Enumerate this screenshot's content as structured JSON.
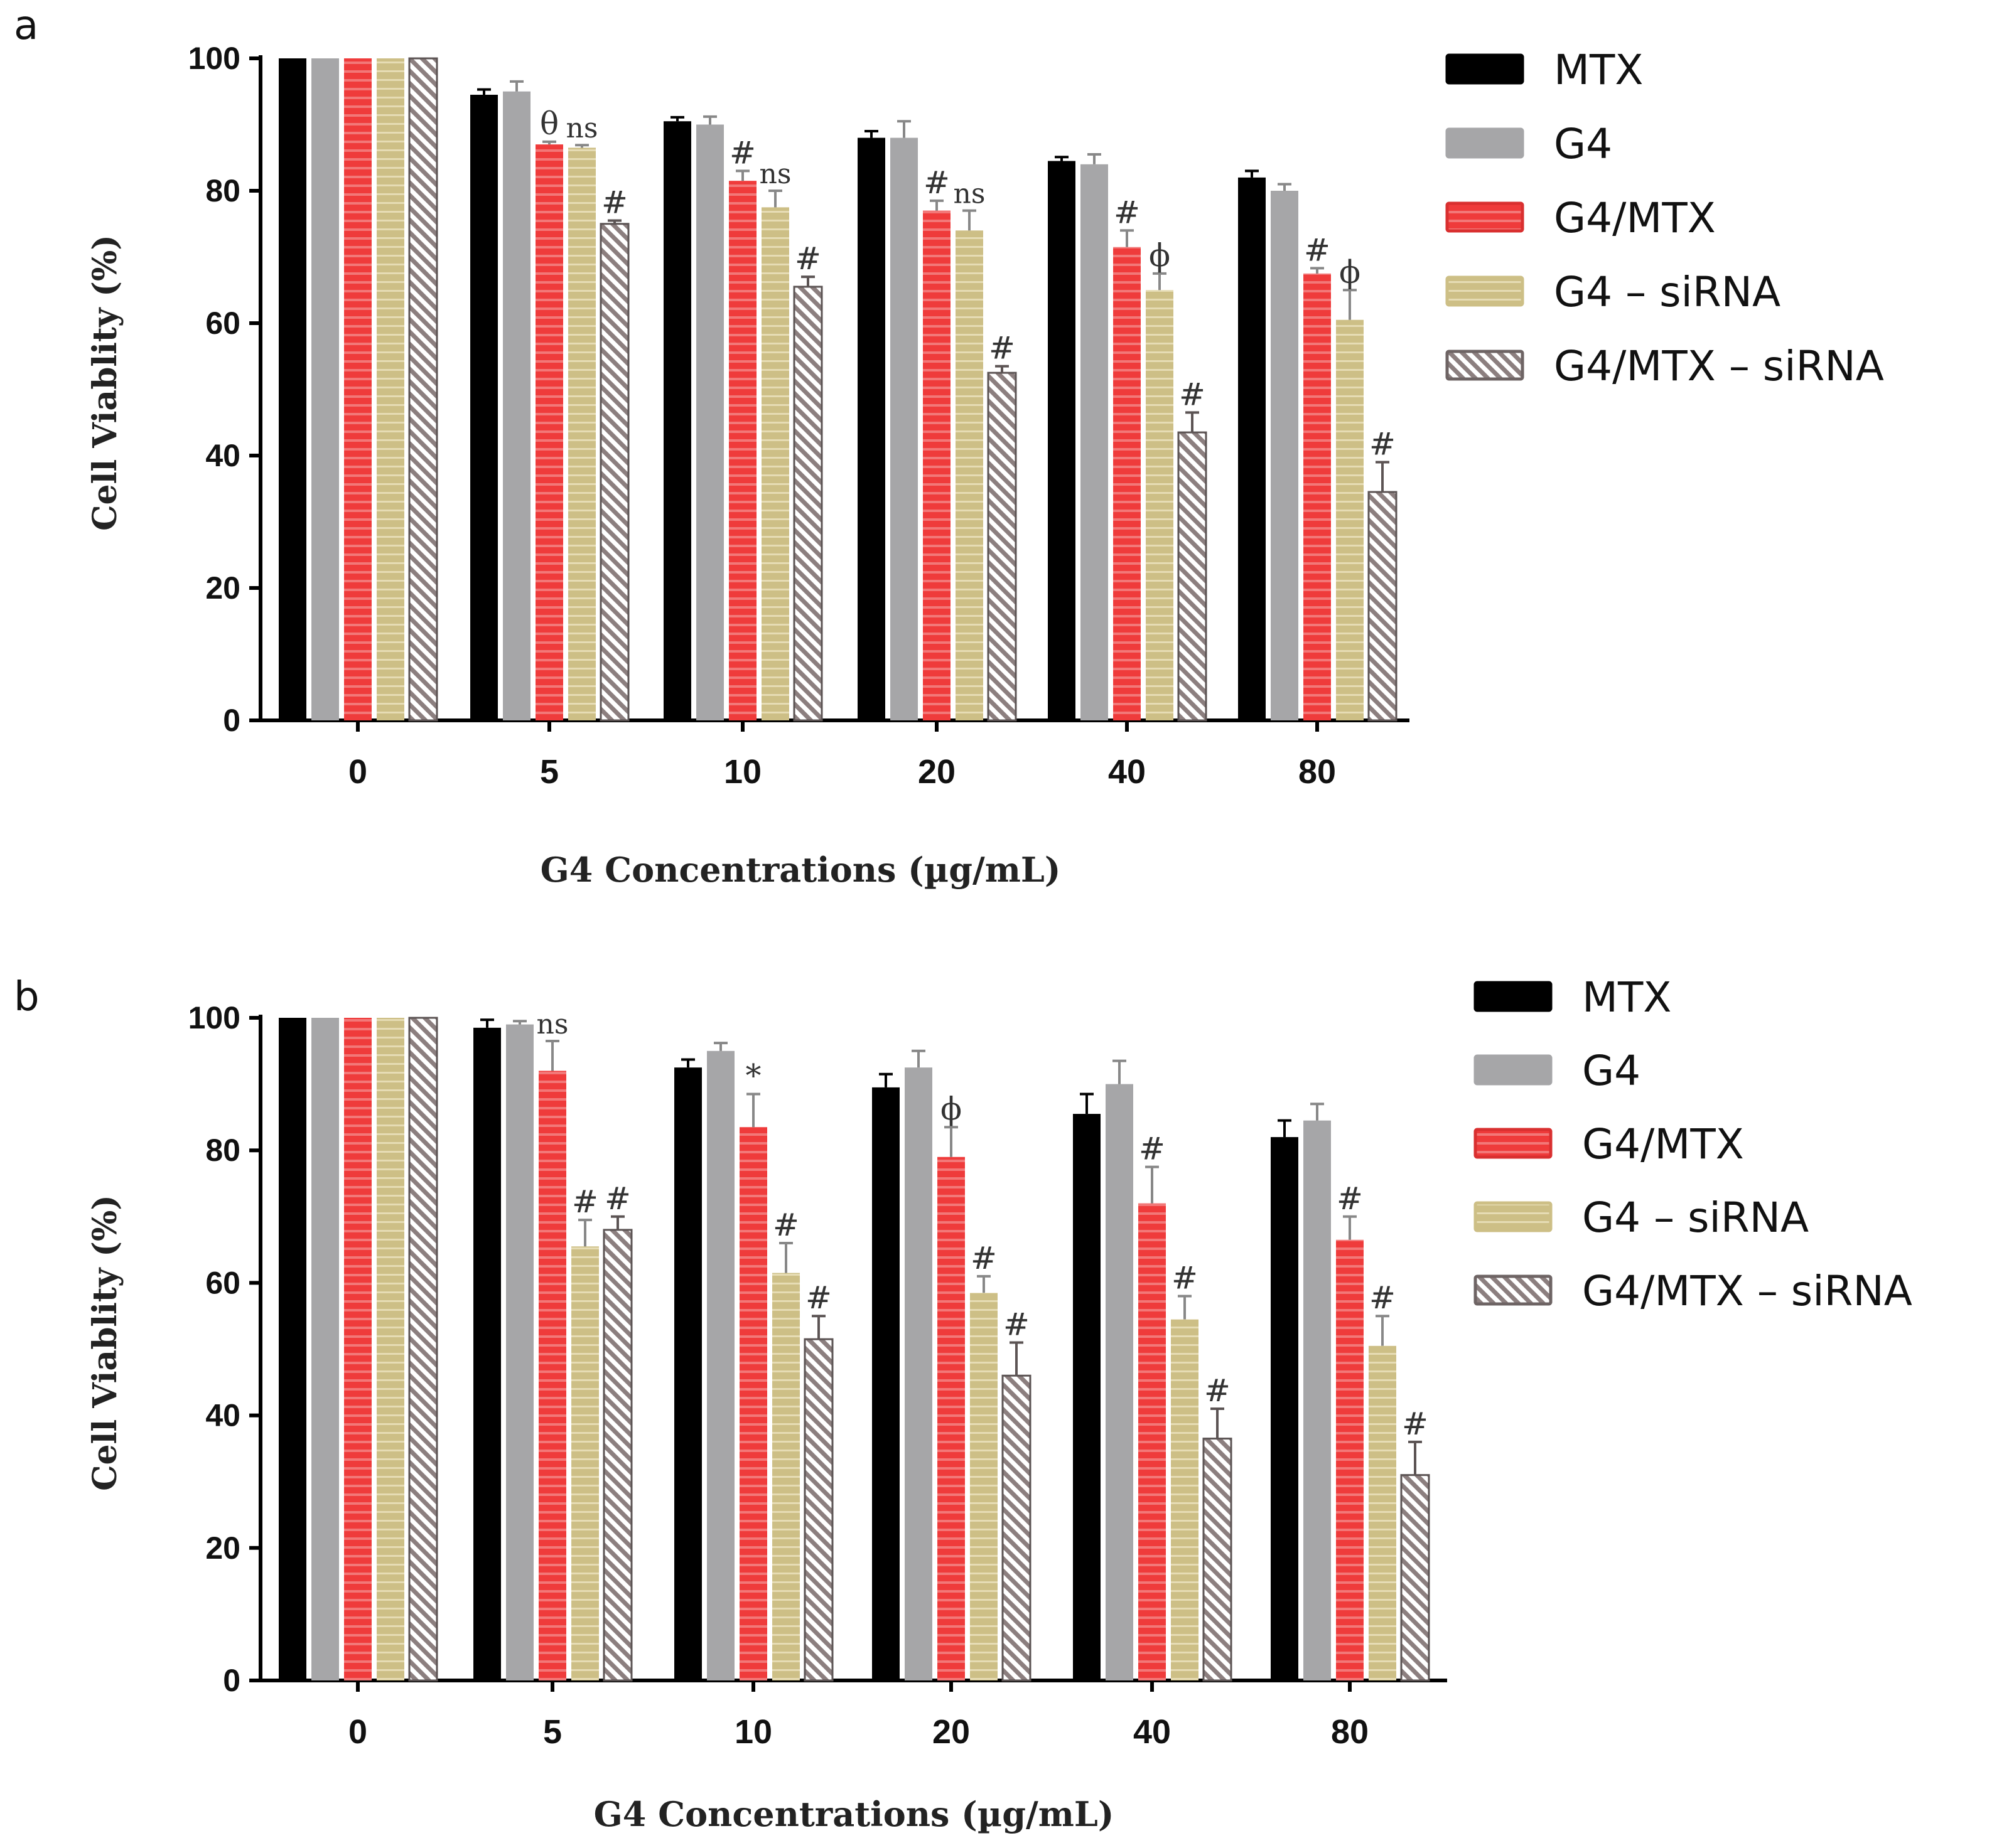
{
  "colors": {
    "MTX": "#000000",
    "G4": "#a6a6a8",
    "G4/MTX": "#ef3b3b",
    "G4 – siRNA": "#cdbf86",
    "G4/MTX – siRNA": "#8c7f7f"
  },
  "chart_data": [
    {
      "type": "bar",
      "panel": "a",
      "categories": [
        "0",
        "5",
        "10",
        "20",
        "40",
        "80"
      ],
      "xlabel": "G4 Concentrations (µg/mL)",
      "ylabel": "Cell Viablity (%)",
      "ylim": [
        0,
        100
      ],
      "yticks": [
        "0",
        "20",
        "40",
        "60",
        "80",
        "100"
      ],
      "legend_position": "top-right",
      "series": [
        {
          "name": "MTX",
          "values": [
            100,
            94.5,
            90.5,
            88,
            84.5,
            82
          ],
          "errors": [
            0,
            0.8,
            0.6,
            1.0,
            0.6,
            1.0
          ],
          "labels": [
            "",
            "",
            "",
            "",
            "",
            ""
          ]
        },
        {
          "name": "G4",
          "values": [
            100,
            95,
            90,
            88,
            84,
            80
          ],
          "errors": [
            0,
            1.5,
            1.2,
            2.5,
            1.5,
            1.0
          ],
          "labels": [
            "",
            "",
            "",
            "",
            "",
            ""
          ]
        },
        {
          "name": "G4/MTX",
          "values": [
            100,
            87,
            81.5,
            77,
            71.5,
            67.5
          ],
          "errors": [
            0,
            0.4,
            1.5,
            1.5,
            2.5,
            0.8
          ],
          "labels": [
            "",
            "θ",
            "#",
            "#",
            "#",
            "#"
          ]
        },
        {
          "name": "G4 – siRNA",
          "values": [
            100,
            86.5,
            77.5,
            74,
            65,
            60.5
          ],
          "errors": [
            0,
            0.4,
            2.5,
            3.0,
            2.5,
            4.5
          ],
          "labels": [
            "",
            "ns",
            "ns",
            "ns",
            "ϕ",
            "ϕ"
          ]
        },
        {
          "name": "G4/MTX – siRNA",
          "values": [
            100,
            75,
            65.5,
            52.5,
            43.5,
            34.5
          ],
          "errors": [
            0,
            0.5,
            1.5,
            1.0,
            3.0,
            4.5
          ],
          "labels": [
            "",
            "#",
            "#",
            "#",
            "#",
            "#"
          ]
        }
      ]
    },
    {
      "type": "bar",
      "panel": "b",
      "categories": [
        "0",
        "5",
        "10",
        "20",
        "40",
        "80"
      ],
      "xlabel": "G4 Concentrations (µg/mL)",
      "ylabel": "Cell Viablity (%)",
      "ylim": [
        0,
        100
      ],
      "yticks": [
        "0",
        "20",
        "40",
        "60",
        "80",
        "100"
      ],
      "legend_position": "top-right",
      "series": [
        {
          "name": "MTX",
          "values": [
            100,
            98.5,
            92.5,
            89.5,
            85.5,
            82
          ],
          "errors": [
            0,
            1.2,
            1.2,
            2.0,
            3.0,
            2.5
          ],
          "labels": [
            "",
            "",
            "",
            "",
            "",
            ""
          ]
        },
        {
          "name": "G4",
          "values": [
            100,
            99,
            95,
            92.5,
            90,
            84.5
          ],
          "errors": [
            0,
            0.5,
            1.2,
            2.5,
            3.5,
            2.5
          ],
          "labels": [
            "",
            "",
            "",
            "",
            "",
            ""
          ]
        },
        {
          "name": "G4/MTX",
          "values": [
            100,
            92,
            83.5,
            79,
            72,
            66.5
          ],
          "errors": [
            0,
            4.5,
            5.0,
            4.5,
            5.5,
            3.5
          ],
          "labels": [
            "",
            "ns",
            "*",
            "ϕ",
            "#",
            "#"
          ]
        },
        {
          "name": "G4 – siRNA",
          "values": [
            100,
            65.5,
            61.5,
            58.5,
            54.5,
            50.5
          ],
          "errors": [
            0,
            4.0,
            4.5,
            2.5,
            3.5,
            4.5
          ],
          "labels": [
            "",
            "#",
            "#",
            "#",
            "#",
            "#"
          ]
        },
        {
          "name": "G4/MTX – siRNA",
          "values": [
            100,
            68,
            51.5,
            46,
            36.5,
            31
          ],
          "errors": [
            0,
            2.0,
            3.5,
            5.0,
            4.5,
            5.0
          ],
          "labels": [
            "",
            "#",
            "#",
            "#",
            "#",
            "#"
          ]
        }
      ]
    }
  ]
}
